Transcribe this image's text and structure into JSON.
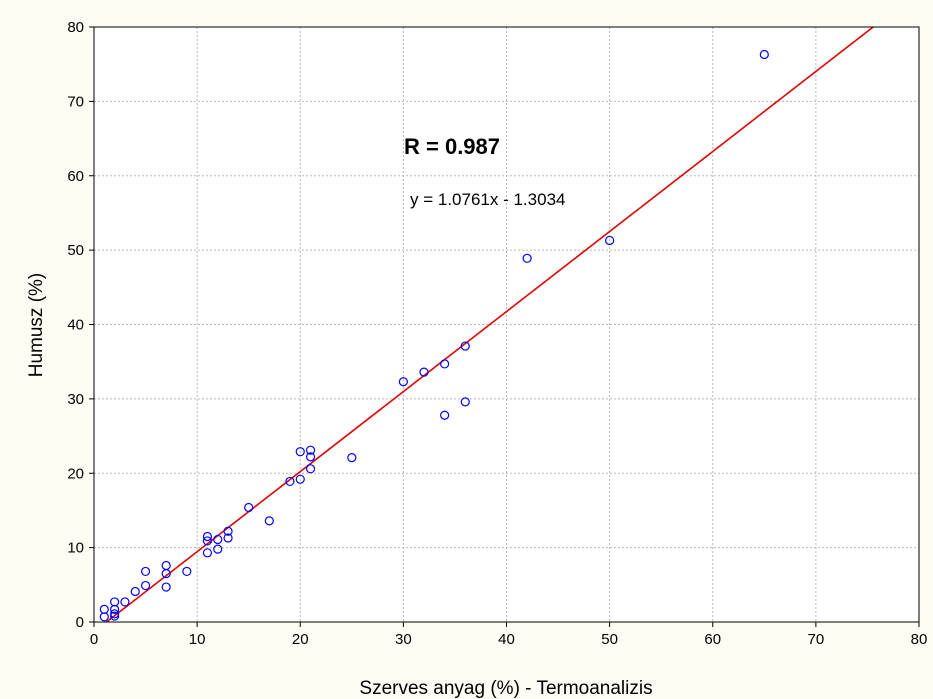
{
  "chart_data": {
    "type": "scatter",
    "title": "",
    "xlabel": "Szerves anyag (%) - Termoanalizis",
    "ylabel": "Humusz (%)",
    "xlim": [
      0,
      80
    ],
    "ylim": [
      0,
      80
    ],
    "x_ticks": [
      "0",
      "10",
      "20",
      "30",
      "40",
      "50",
      "60",
      "70",
      "80"
    ],
    "y_ticks": [
      "0",
      "10",
      "20",
      "30",
      "40",
      "50",
      "60",
      "70",
      "80"
    ],
    "grid": true,
    "annotation_r": "R = 0.987",
    "annotation_equation": "y = 1.0761x - 1.3034",
    "regression": {
      "slope": 1.0761,
      "intercept": -1.3034
    },
    "colors": {
      "background": "#fffdf3",
      "plot_background": "#ffffff",
      "points": "#0000ff",
      "regression_line": "#e00000",
      "grid": "#b8b8b8"
    },
    "points": [
      {
        "x": 1,
        "y": 0.7
      },
      {
        "x": 1,
        "y": 1.7
      },
      {
        "x": 2,
        "y": 0.8
      },
      {
        "x": 2,
        "y": 1.1
      },
      {
        "x": 2,
        "y": 1.7
      },
      {
        "x": 2,
        "y": 2.7
      },
      {
        "x": 3,
        "y": 2.7
      },
      {
        "x": 4,
        "y": 4.1
      },
      {
        "x": 5,
        "y": 4.9
      },
      {
        "x": 5,
        "y": 6.8
      },
      {
        "x": 7,
        "y": 4.7
      },
      {
        "x": 7,
        "y": 6.5
      },
      {
        "x": 7,
        "y": 7.6
      },
      {
        "x": 9,
        "y": 6.8
      },
      {
        "x": 11,
        "y": 9.3
      },
      {
        "x": 11,
        "y": 10.9
      },
      {
        "x": 11,
        "y": 11.5
      },
      {
        "x": 12,
        "y": 9.8
      },
      {
        "x": 12,
        "y": 11.1
      },
      {
        "x": 13,
        "y": 11.3
      },
      {
        "x": 13,
        "y": 12.2
      },
      {
        "x": 15,
        "y": 15.4
      },
      {
        "x": 17,
        "y": 13.6
      },
      {
        "x": 19,
        "y": 18.9
      },
      {
        "x": 20,
        "y": 19.2
      },
      {
        "x": 20,
        "y": 22.9
      },
      {
        "x": 21,
        "y": 20.6
      },
      {
        "x": 21,
        "y": 22.2
      },
      {
        "x": 21,
        "y": 23.1
      },
      {
        "x": 25,
        "y": 22.1
      },
      {
        "x": 30,
        "y": 32.3
      },
      {
        "x": 32,
        "y": 33.6
      },
      {
        "x": 34,
        "y": 27.8
      },
      {
        "x": 34,
        "y": 34.7
      },
      {
        "x": 36,
        "y": 29.6
      },
      {
        "x": 36,
        "y": 37.1
      },
      {
        "x": 42,
        "y": 48.9
      },
      {
        "x": 50,
        "y": 51.3
      },
      {
        "x": 65,
        "y": 76.3
      }
    ]
  }
}
